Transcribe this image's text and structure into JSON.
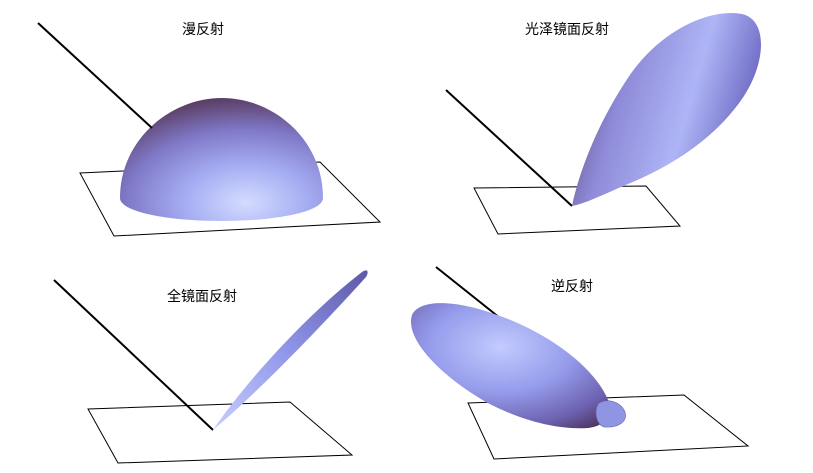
{
  "panels": [
    {
      "id": "diffuse",
      "title": "漫反射"
    },
    {
      "id": "glossy",
      "title": "光泽镜面反射"
    },
    {
      "id": "mirror",
      "title": "全镜面反射"
    },
    {
      "id": "retro",
      "title": "逆反射"
    }
  ],
  "colors": {
    "lobe_light": "#c9d3ff",
    "lobe_mid": "#8f97e6",
    "lobe_dark": "#5a3c62",
    "line": "#000000",
    "background": "#ffffff"
  }
}
